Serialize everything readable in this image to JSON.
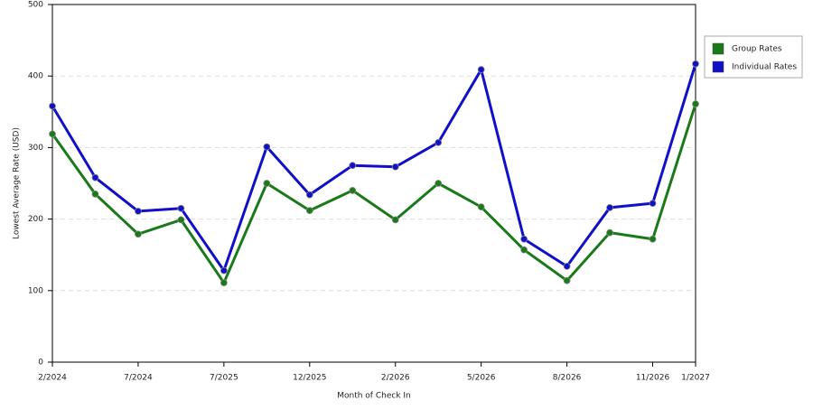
{
  "chart_data": {
    "type": "line",
    "x_label": "Month of Check In",
    "y_label": "Lowest Average Rate (USD)",
    "categories": [
      "2/2024",
      null,
      "7/2024",
      null,
      "7/2025",
      null,
      "12/2025",
      null,
      "2/2026",
      null,
      "5/2026",
      null,
      "8/2026",
      null,
      "11/2026",
      "1/2027"
    ],
    "series": [
      {
        "name": "Group Rates",
        "color": "#1a7a1a",
        "values": [
          319,
          235,
          179,
          199,
          111,
          250,
          212,
          240,
          199,
          250,
          217,
          157,
          114,
          181,
          172,
          361
        ]
      },
      {
        "name": "Individual Rates",
        "color": "#1010c8",
        "values": [
          358,
          258,
          211,
          215,
          128,
          301,
          234,
          275,
          273,
          307,
          409,
          172,
          134,
          216,
          222,
          417
        ]
      }
    ],
    "ylim": [
      0,
      500
    ],
    "yticks": [
      0,
      100,
      200,
      300,
      400,
      500
    ],
    "grid": true
  }
}
